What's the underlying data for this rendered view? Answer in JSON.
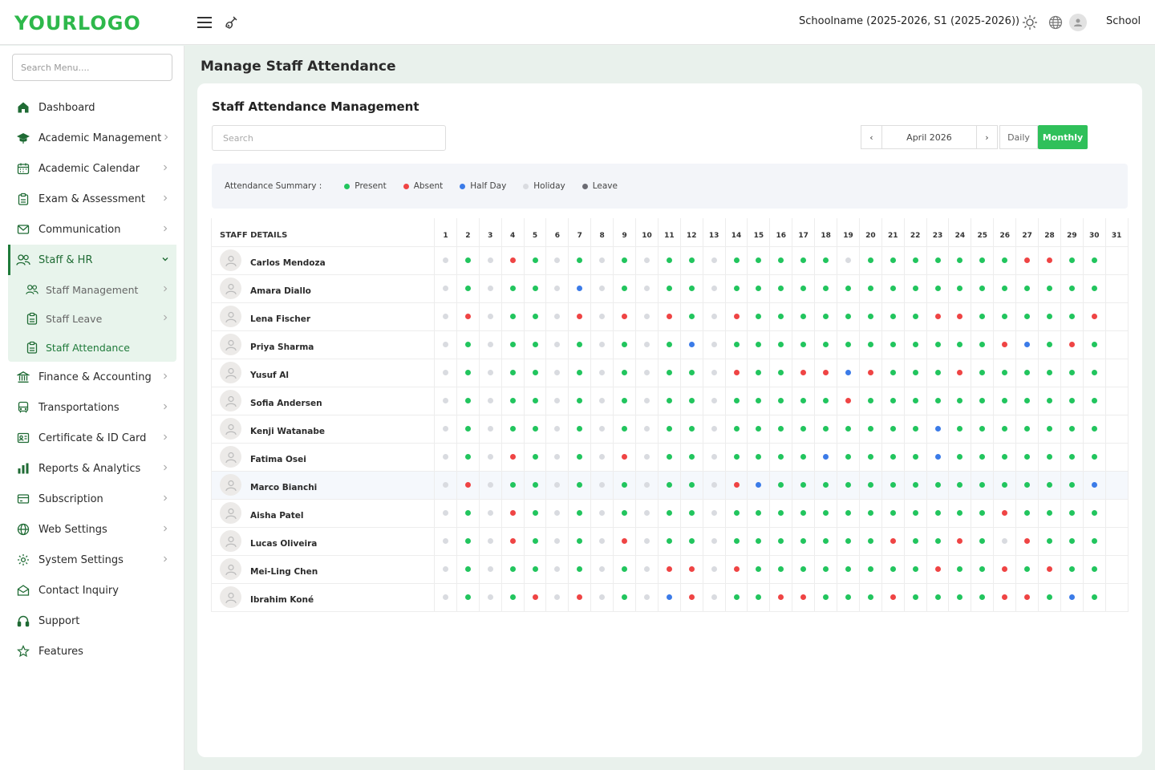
{
  "header": {
    "logo": "YOURLOGO",
    "school": "Schoolname (2025-2026, S1 (2025-2026))",
    "user": "School"
  },
  "sidebar": {
    "search_placeholder": "Search Menu....",
    "items": [
      {
        "label": "Dashboard",
        "icon": "home-icon",
        "chevron": false
      },
      {
        "label": "Academic Management",
        "icon": "graduation-cap-icon",
        "chevron": true
      },
      {
        "label": "Academic Calendar",
        "icon": "calendar-icon",
        "chevron": true
      },
      {
        "label": "Exam & Assessment",
        "icon": "clipboard-icon",
        "chevron": true
      },
      {
        "label": "Communication",
        "icon": "mail-icon",
        "chevron": true
      },
      {
        "label": "Staff & HR",
        "icon": "users-icon",
        "chevron": true,
        "open": true,
        "children": [
          {
            "label": "Staff Management",
            "icon": "users-icon",
            "chevron": true
          },
          {
            "label": "Staff Leave",
            "icon": "clipboard-icon",
            "chevron": true
          },
          {
            "label": "Staff Attendance",
            "icon": "clipboard-icon",
            "chevron": false,
            "active": true
          }
        ]
      },
      {
        "label": "Finance & Accounting",
        "icon": "bank-icon",
        "chevron": true
      },
      {
        "label": "Transportations",
        "icon": "bus-icon",
        "chevron": true
      },
      {
        "label": "Certificate & ID Card",
        "icon": "id-card-icon",
        "chevron": true
      },
      {
        "label": "Reports & Analytics",
        "icon": "bar-chart-icon",
        "chevron": true
      },
      {
        "label": "Subscription",
        "icon": "credit-card-icon",
        "chevron": true
      },
      {
        "label": "Web Settings",
        "icon": "globe-icon",
        "chevron": true
      },
      {
        "label": "System Settings",
        "icon": "gear-icon",
        "chevron": true
      },
      {
        "label": "Contact Inquiry",
        "icon": "envelope-open-icon",
        "chevron": false
      },
      {
        "label": "Support",
        "icon": "headphones-icon",
        "chevron": false
      },
      {
        "label": "Features",
        "icon": "star-icon",
        "chevron": false
      }
    ]
  },
  "main": {
    "page_title": "Manage Staff Attendance",
    "card_title": "Staff Attendance Management",
    "search_placeholder": "Search",
    "date_label": "April 2026",
    "prev_label": "‹",
    "next_label": "›",
    "daily_label": "Daily",
    "monthly_label": "Monthly",
    "summary_title": "Attendance Summary :",
    "legend": [
      {
        "label": "Present",
        "code": "P"
      },
      {
        "label": "Absent",
        "code": "A"
      },
      {
        "label": "Half Day",
        "code": "H"
      },
      {
        "label": "Holiday",
        "code": "O"
      },
      {
        "label": "Leave",
        "code": "L"
      }
    ],
    "status_colors": {
      "P": "#22c55e",
      "A": "#ef4444",
      "H": "#3b7be8",
      "O": "#d9dbe0",
      "L": "#6b6b73"
    },
    "staff_header": "STAFF DETAILS",
    "days": [
      "1",
      "2",
      "3",
      "4",
      "5",
      "6",
      "7",
      "8",
      "9",
      "10",
      "11",
      "12",
      "13",
      "14",
      "15",
      "16",
      "17",
      "18",
      "19",
      "20",
      "21",
      "22",
      "23",
      "24",
      "25",
      "26",
      "27",
      "28",
      "29",
      "30",
      "31"
    ],
    "highlight_row": 8,
    "staff": [
      {
        "name": "Carlos Mendoza",
        "att": "OPOAPOPOPOPPOPPPPPOPPPPPPPAAPP-"
      },
      {
        "name": "Amara Diallo",
        "att": "OPOPPOHOPOPPOPPPPPPPPPPPPPPPPP-"
      },
      {
        "name": "Lena Fischer",
        "att": "OAOPPOAOAOAPOAPPPPPPPPAAPPPPPA-"
      },
      {
        "name": "Priya Sharma",
        "att": "OPOPPOPOPOPHOPPPPPPPPPPPPAHPAP-"
      },
      {
        "name": "Yusuf Al",
        "att": "OPOPPOPOPOPPOAPPAAHAPPPAPPPPPP-"
      },
      {
        "name": "Sofia Andersen",
        "att": "OPOPPOPOPOPPOPPPPPAPPPPPPPPPPP-"
      },
      {
        "name": "Kenji Watanabe",
        "att": "OPOPPOPOPOPPOPPPPPPPPPHPPPPPPP-"
      },
      {
        "name": "Fatima Osei",
        "att": "OPOAPOPOAOPPOPPPPHPPPPHPPPPPPP-"
      },
      {
        "name": "Marco Bianchi",
        "att": "OAOPPOPOPOPPOAHPPPPPPPPPPPPPPH-"
      },
      {
        "name": "Aisha Patel",
        "att": "OPOAPOPOPOPPOPPPPPPPPPPPPAPPPP-"
      },
      {
        "name": "Lucas Oliveira",
        "att": "OPOAPOPOAOPPOPPPPPPPAPPAPOAPPP-"
      },
      {
        "name": "Mei-Ling Chen",
        "att": "OPOPPOPOPOAAOAPPPPPPPPAPPAPAPP-"
      },
      {
        "name": "Ibrahim Koné",
        "att": "OPOPAOAOPOHAOPPAAPPPAPPPPAAPHP-"
      }
    ]
  }
}
